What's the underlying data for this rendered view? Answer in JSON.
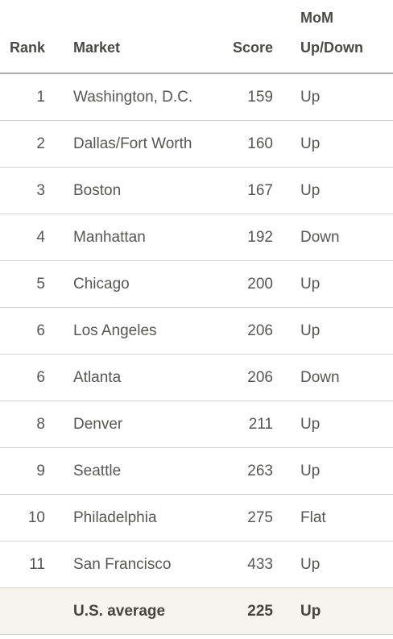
{
  "table": {
    "headers": {
      "rank": "Rank",
      "market": "Market",
      "score": "Score",
      "mom_line1": "MoM",
      "mom_line2": "Up/Down"
    },
    "rows": [
      {
        "rank": "1",
        "market": "Washington, D.C.",
        "score": "159",
        "mom": "Up"
      },
      {
        "rank": "2",
        "market": "Dallas/Fort Worth",
        "score": "160",
        "mom": "Up"
      },
      {
        "rank": "3",
        "market": "Boston",
        "score": "167",
        "mom": "Up"
      },
      {
        "rank": "4",
        "market": "Manhattan",
        "score": "192",
        "mom": "Down"
      },
      {
        "rank": "5",
        "market": "Chicago",
        "score": "200",
        "mom": "Up"
      },
      {
        "rank": "6",
        "market": "Los Angeles",
        "score": "206",
        "mom": "Up"
      },
      {
        "rank": "6",
        "market": "Atlanta",
        "score": "206",
        "mom": "Down"
      },
      {
        "rank": "8",
        "market": "Denver",
        "score": "211",
        "mom": "Up"
      },
      {
        "rank": "9",
        "market": "Seattle",
        "score": "263",
        "mom": "Up"
      },
      {
        "rank": "10",
        "market": "Philadelphia",
        "score": "275",
        "mom": "Flat"
      },
      {
        "rank": "11",
        "market": "San Francisco",
        "score": "433",
        "mom": "Up"
      }
    ],
    "average": {
      "rank": "",
      "market": "U.S. average",
      "score": "225",
      "mom": "Up"
    }
  },
  "colors": {
    "text": "#4a4a48",
    "header_rule": "#a9aca9",
    "row_rule": "#d2d4d1",
    "average_row_bg": "#f5f4ee"
  }
}
